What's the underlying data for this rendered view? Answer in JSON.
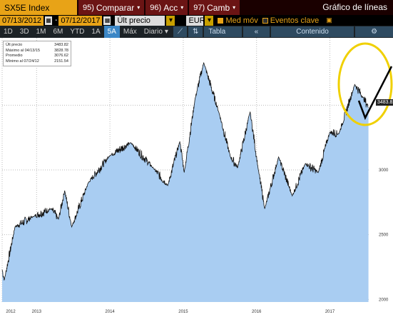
{
  "toolbar": {
    "ticker": "SX5E Index",
    "compare_num": "95)",
    "compare_label": "Comparar",
    "acc_num": "96)",
    "acc_label": "Acc",
    "camb_num": "97)",
    "camb_label": "Camb",
    "title": "Gráfico de líneas"
  },
  "range": {
    "start": "07/13/2012",
    "end": "07/12/2017",
    "field": "Últ precio",
    "currency": "EUR",
    "med_mov_label": "Med móv",
    "eventos_label": "Eventos clave"
  },
  "periods": [
    "1D",
    "3D",
    "1M",
    "6M",
    "YTD",
    "1A",
    "5A",
    "Máx"
  ],
  "active_period": "5A",
  "freq": "Diario",
  "tabla_label": "Tabla",
  "contenido_label": "Contenido",
  "legend": {
    "last_label": "Últ precio",
    "last_value": "3483.82",
    "max_label": "Máximo al 04/13/15",
    "max_value": "3828.78",
    "avg_label": "Promedio",
    "avg_value": "3076.62",
    "min_label": "Mínimo al 07/24/12",
    "min_value": "2151.54"
  },
  "last_price_tag": "3483.82",
  "colors": {
    "area": "#a9cdf2",
    "line": "#111111",
    "ticker_bg": "#e8a317",
    "annot": "#f0d000"
  },
  "chart_data": {
    "type": "area",
    "title": "",
    "xlabel": "",
    "ylabel": "",
    "ylim": [
      1980,
      4020
    ],
    "yticks": [
      2000,
      2500,
      3000
    ],
    "xticks": [
      {
        "t": 2012.53,
        "label": "2012"
      },
      {
        "t": 2013.0,
        "label": "2013"
      },
      {
        "t": 2014.0,
        "label": "2014"
      },
      {
        "t": 2015.0,
        "label": "2015"
      },
      {
        "t": 2016.0,
        "label": "2016"
      },
      {
        "t": 2017.0,
        "label": "2017"
      }
    ],
    "x": [
      "2012-07-13",
      "2012-07-24",
      "2012-09-15",
      "2012-12-15",
      "2013-03-15",
      "2013-04-20",
      "2013-05-21",
      "2013-06-25",
      "2013-09-15",
      "2013-12-31",
      "2014-04-15",
      "2014-08-07",
      "2014-10-16",
      "2014-12-15",
      "2015-01-06",
      "2015-03-01",
      "2015-04-13",
      "2015-06-30",
      "2015-08-24",
      "2015-09-29",
      "2015-11-30",
      "2016-01-10",
      "2016-02-11",
      "2016-04-20",
      "2016-06-27",
      "2016-09-01",
      "2016-11-04",
      "2016-12-31",
      "2017-02-15",
      "2017-05-05",
      "2017-06-15",
      "2017-07-12"
    ],
    "values": [
      2230,
      2151,
      2560,
      2640,
      2700,
      2620,
      2840,
      2560,
      2900,
      3110,
      3210,
      3010,
      2880,
      3220,
      2980,
      3550,
      3829,
      3430,
      3100,
      3020,
      3450,
      3000,
      2700,
      3100,
      2800,
      3050,
      2980,
      3290,
      3280,
      3660,
      3560,
      3484
    ]
  }
}
